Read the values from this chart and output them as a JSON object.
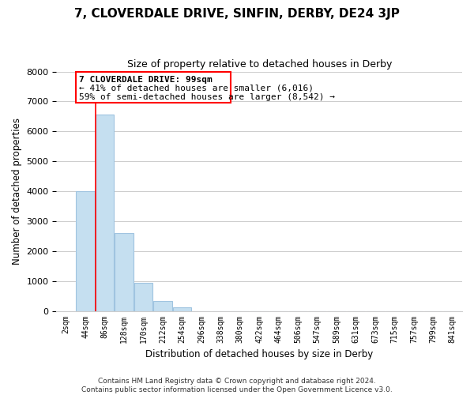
{
  "title": "7, CLOVERDALE DRIVE, SINFIN, DERBY, DE24 3JP",
  "subtitle": "Size of property relative to detached houses in Derby",
  "xlabel": "Distribution of detached houses by size in Derby",
  "ylabel": "Number of detached properties",
  "bar_labels": [
    "2sqm",
    "44sqm",
    "86sqm",
    "128sqm",
    "170sqm",
    "212sqm",
    "254sqm",
    "296sqm",
    "338sqm",
    "380sqm",
    "422sqm",
    "464sqm",
    "506sqm",
    "547sqm",
    "589sqm",
    "631sqm",
    "673sqm",
    "715sqm",
    "757sqm",
    "799sqm",
    "841sqm"
  ],
  "bar_values": [
    0,
    4000,
    6550,
    2600,
    950,
    320,
    130,
    0,
    0,
    0,
    0,
    0,
    0,
    0,
    0,
    0,
    0,
    0,
    0,
    0,
    0
  ],
  "bar_color": "#c5dff0",
  "bar_edge_color": "#a0c4e0",
  "redline_index": 2,
  "ylim": [
    0,
    8000
  ],
  "yticks": [
    0,
    1000,
    2000,
    3000,
    4000,
    5000,
    6000,
    7000,
    8000
  ],
  "annotation_title": "7 CLOVERDALE DRIVE: 99sqm",
  "annotation_line1": "← 41% of detached houses are smaller (6,016)",
  "annotation_line2": "59% of semi-detached houses are larger (8,542) →",
  "footer_line1": "Contains HM Land Registry data © Crown copyright and database right 2024.",
  "footer_line2": "Contains public sector information licensed under the Open Government Licence v3.0.",
  "background_color": "#ffffff",
  "grid_color": "#cccccc"
}
